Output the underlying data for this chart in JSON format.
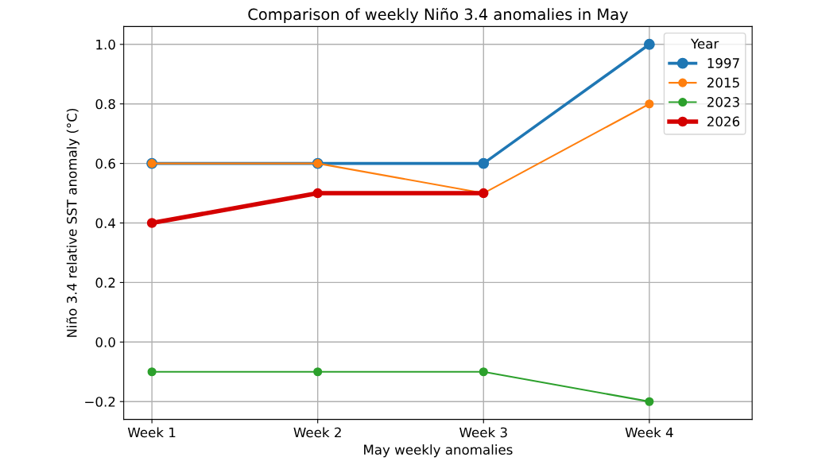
{
  "chart_data": {
    "type": "line",
    "title": "Comparison of weekly Niño 3.4 anomalies in May",
    "xlabel": "May weekly anomalies",
    "ylabel": "Niño 3.4 relative SST anomaly (°C)",
    "legend_title": "Year",
    "categories": [
      "Week 1",
      "Week 2",
      "Week 3",
      "Week 4"
    ],
    "series": [
      {
        "name": "1997",
        "color": "#1f77b4",
        "values": [
          0.6,
          0.6,
          0.6,
          1.0
        ]
      },
      {
        "name": "2015",
        "color": "#ff7f0e",
        "values": [
          0.6,
          0.6,
          0.5,
          0.8
        ]
      },
      {
        "name": "2023",
        "color": "#2ca02c",
        "values": [
          -0.1,
          -0.1,
          -0.1,
          -0.2
        ]
      },
      {
        "name": "2026",
        "color": "#d40000",
        "values": [
          0.4,
          0.5,
          0.5,
          null
        ]
      }
    ],
    "ylim": [
      -0.26,
      1.06
    ],
    "yticks": [
      {
        "value": -0.2,
        "label": "−0.2"
      },
      {
        "value": 0.0,
        "label": "0.0"
      },
      0.2,
      0.4,
      0.6,
      0.8,
      {
        "value": 1.0,
        "label": "1.0"
      }
    ],
    "grid": true,
    "legend": "top right",
    "marker": "circle",
    "line_style": "solid"
  }
}
